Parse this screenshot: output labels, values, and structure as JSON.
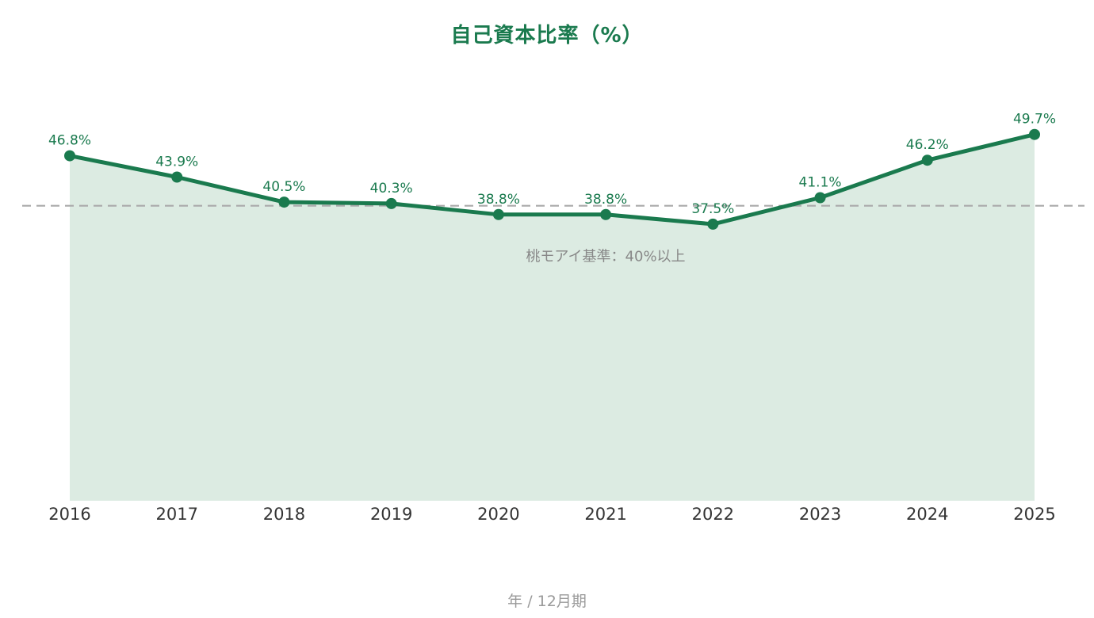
{
  "chart_data": {
    "type": "area",
    "title": "自己資本比率（%）",
    "xlabel": "年 / 12月期",
    "ylabel": "",
    "categories": [
      "2016",
      "2017",
      "2018",
      "2019",
      "2020",
      "2021",
      "2022",
      "2023",
      "2024",
      "2025"
    ],
    "series": [
      {
        "values": [
          46.8,
          43.9,
          40.5,
          40.3,
          38.8,
          38.8,
          37.5,
          41.1,
          46.2,
          49.7
        ],
        "labels": [
          "46.8%",
          "43.9%",
          "40.5%",
          "40.3%",
          "38.8%",
          "38.8%",
          "37.5%",
          "41.1%",
          "46.2%",
          "49.7%"
        ]
      }
    ],
    "reference_line": {
      "value": 40,
      "label": "桃モアイ基準：40%以上",
      "style": "dashed"
    },
    "grid": false,
    "legend": "none",
    "colors": {
      "line": "#1a7a4e",
      "area": "#dcebe2",
      "reference": "#aaaaaa",
      "reference_label": "#888888"
    }
  }
}
